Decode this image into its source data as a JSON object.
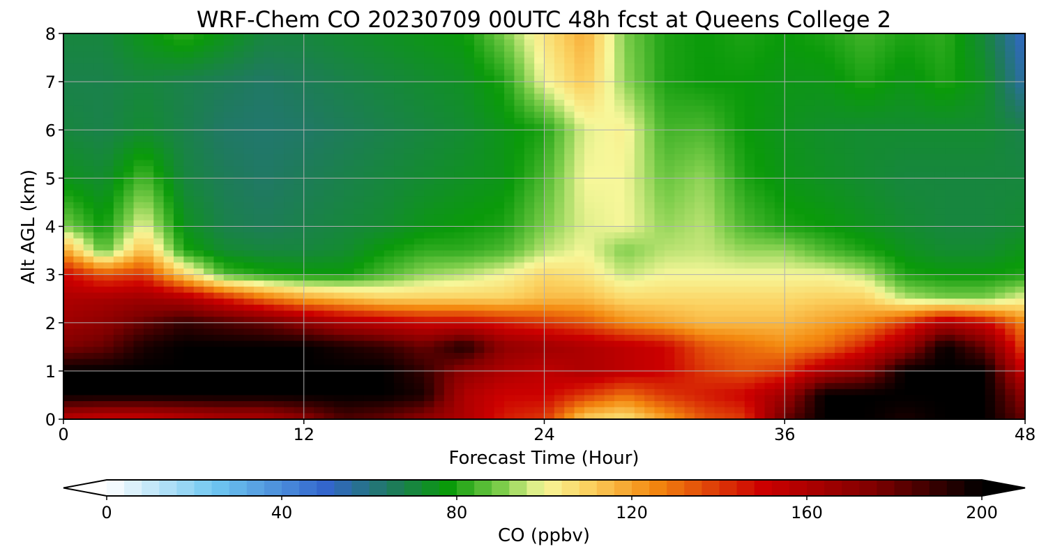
{
  "chart_data": {
    "type": "heatmap",
    "title": "WRF-Chem CO  20230709 00UTC 48h fcst at Queens College 2",
    "xlabel": "Forecast Time (Hour)",
    "ylabel": "Alt AGL (km)",
    "xlim": [
      0,
      48
    ],
    "ylim": [
      0,
      8
    ],
    "xticks": [
      "0",
      "12",
      "24",
      "36",
      "48"
    ],
    "yticks": [
      "0",
      "1",
      "2",
      "3",
      "4",
      "5",
      "6",
      "7",
      "8"
    ],
    "grid": true,
    "colorbar": {
      "label": "CO  (ppbv)",
      "range": [
        0,
        200
      ],
      "ticks": [
        "0",
        "40",
        "80",
        "120",
        "160",
        "200"
      ],
      "extend": "both",
      "orientation": "horizontal",
      "stops": [
        {
          "v": 0,
          "color": "#ffffff"
        },
        {
          "v": 25,
          "color": "#6ec6f0"
        },
        {
          "v": 50,
          "color": "#3366cc"
        },
        {
          "v": 65,
          "color": "#1f7a5e"
        },
        {
          "v": 78,
          "color": "#0a9a0a"
        },
        {
          "v": 90,
          "color": "#7ccd4a"
        },
        {
          "v": 100,
          "color": "#f7f79a"
        },
        {
          "v": 110,
          "color": "#fbd160"
        },
        {
          "v": 125,
          "color": "#f48a10"
        },
        {
          "v": 150,
          "color": "#cc0000"
        },
        {
          "v": 175,
          "color": "#800000"
        },
        {
          "v": 200,
          "color": "#000000"
        }
      ]
    },
    "x": [
      0,
      2,
      4,
      6,
      8,
      10,
      12,
      14,
      16,
      18,
      20,
      22,
      24,
      26,
      28,
      30,
      32,
      34,
      36,
      38,
      40,
      42,
      44,
      46,
      48
    ],
    "y": [
      0,
      0.5,
      1,
      1.5,
      2,
      2.5,
      3,
      3.5,
      4,
      5,
      6,
      7,
      8
    ],
    "z": [
      [
        155,
        150,
        150,
        155,
        160,
        160,
        170,
        185,
        180,
        170,
        160,
        145,
        140,
        110,
        105,
        120,
        135,
        140,
        180,
        200,
        200,
        195,
        200,
        200,
        180
      ],
      [
        200,
        200,
        200,
        200,
        200,
        200,
        200,
        200,
        200,
        195,
        160,
        150,
        150,
        140,
        130,
        140,
        145,
        150,
        165,
        200,
        200,
        200,
        200,
        200,
        170
      ],
      [
        200,
        200,
        200,
        200,
        200,
        200,
        200,
        200,
        200,
        190,
        170,
        160,
        155,
        160,
        155,
        150,
        140,
        135,
        140,
        160,
        170,
        200,
        200,
        200,
        150
      ],
      [
        175,
        180,
        195,
        200,
        200,
        200,
        200,
        195,
        190,
        180,
        195,
        170,
        165,
        160,
        155,
        150,
        135,
        130,
        125,
        130,
        145,
        165,
        200,
        180,
        135
      ],
      [
        165,
        170,
        180,
        190,
        185,
        180,
        170,
        160,
        155,
        150,
        150,
        145,
        140,
        135,
        125,
        120,
        115,
        115,
        115,
        120,
        125,
        140,
        160,
        150,
        125
      ],
      [
        160,
        162,
        165,
        160,
        145,
        130,
        120,
        115,
        110,
        110,
        110,
        110,
        115,
        115,
        108,
        108,
        108,
        108,
        108,
        110,
        110,
        95,
        90,
        90,
        100
      ],
      [
        150,
        135,
        140,
        110,
        85,
        80,
        78,
        78,
        85,
        92,
        95,
        100,
        108,
        105,
        96,
        100,
        100,
        100,
        100,
        100,
        95,
        80,
        78,
        78,
        80
      ],
      [
        120,
        85,
        115,
        80,
        72,
        70,
        70,
        72,
        78,
        82,
        82,
        85,
        95,
        100,
        90,
        95,
        96,
        92,
        92,
        85,
        80,
        75,
        72,
        72,
        76
      ],
      [
        90,
        78,
        100,
        75,
        68,
        66,
        68,
        70,
        72,
        76,
        78,
        80,
        90,
        98,
        100,
        92,
        95,
        85,
        80,
        78,
        75,
        72,
        70,
        70,
        72
      ],
      [
        75,
        72,
        85,
        70,
        66,
        64,
        66,
        68,
        70,
        72,
        74,
        76,
        85,
        100,
        100,
        88,
        92,
        80,
        76,
        74,
        72,
        70,
        70,
        70,
        70
      ],
      [
        70,
        68,
        72,
        68,
        64,
        63,
        64,
        66,
        68,
        70,
        72,
        76,
        80,
        98,
        102,
        84,
        85,
        78,
        75,
        73,
        72,
        72,
        72,
        72,
        68
      ],
      [
        68,
        68,
        70,
        68,
        66,
        64,
        66,
        68,
        70,
        72,
        74,
        80,
        100,
        112,
        92,
        80,
        78,
        78,
        76,
        76,
        80,
        76,
        80,
        74,
        55
      ],
      [
        70,
        70,
        76,
        82,
        76,
        70,
        70,
        72,
        74,
        76,
        78,
        90,
        105,
        118,
        90,
        80,
        78,
        80,
        78,
        80,
        84,
        80,
        82,
        70,
        50
      ]
    ]
  }
}
